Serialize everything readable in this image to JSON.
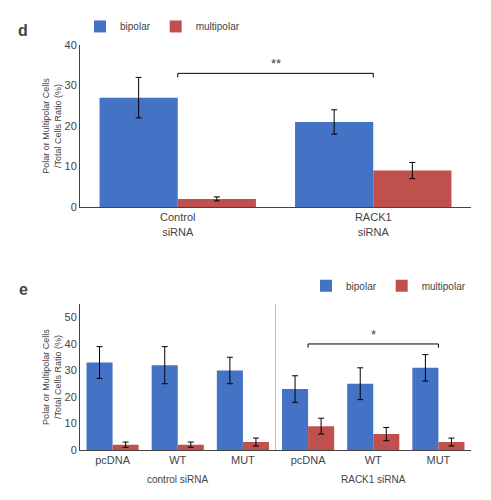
{
  "chart_data": [
    {
      "type": "bar",
      "title": "d",
      "categories": [
        "Control\nsiRNA",
        "RACK1\nsiRNA"
      ],
      "series": [
        {
          "name": "bipolar",
          "color": "#4472C4",
          "values": [
            27,
            21
          ],
          "errors": [
            5,
            3
          ]
        },
        {
          "name": "multipolar",
          "color": "#C0504D",
          "values": [
            2,
            9
          ],
          "errors": [
            0.5,
            2
          ]
        }
      ],
      "ylabel": "Polar or Multipolar Cells\n/Total Cells Ratio (%)",
      "ylim": [
        0,
        40
      ],
      "yticks": [
        0,
        10,
        20,
        30,
        40
      ],
      "grid": false,
      "legend": "upper left",
      "annotations": [
        {
          "text": "**",
          "x": [
            0,
            1
          ],
          "y": 33
        }
      ]
    },
    {
      "type": "bar",
      "title": "e",
      "categories": [
        "pcDNA",
        "WT",
        "MUT",
        "pcDNA",
        "WT",
        "MUT"
      ],
      "group_labels": [
        "control siRNA",
        "RACK1 siRNA"
      ],
      "series": [
        {
          "name": "bipolar",
          "color": "#4472C4",
          "values": [
            33,
            32,
            30,
            23,
            25,
            31
          ],
          "errors": [
            6,
            7,
            5,
            5,
            6,
            5
          ]
        },
        {
          "name": "multipolar",
          "color": "#C0504D",
          "values": [
            2,
            2,
            3,
            9,
            6,
            3
          ],
          "errors": [
            1,
            1,
            1.5,
            3,
            2.5,
            1.5
          ]
        }
      ],
      "ylabel": "Polar or Multipolar Cells\n/Total Cells Ratio (%)",
      "ylim": [
        0,
        55
      ],
      "yticks": [
        0,
        10,
        20,
        30,
        40,
        50
      ],
      "grid": false,
      "legend": "upper right",
      "annotations": [
        {
          "text": "*",
          "x": [
            3,
            5
          ],
          "y": 40
        }
      ]
    }
  ]
}
